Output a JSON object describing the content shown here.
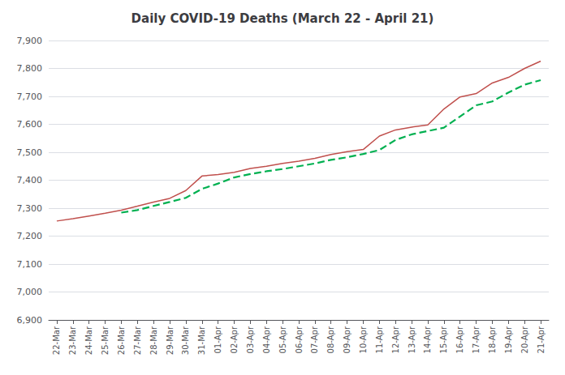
{
  "chart_data": {
    "type": "line",
    "title": "Daily COVID-19 Deaths (March 22 - April 21)",
    "categories": [
      "22-Mar",
      "23-Mar",
      "24-Mar",
      "25-Mar",
      "26-Mar",
      "27-Mar",
      "28-Mar",
      "29-Mar",
      "30-Mar",
      "31-Mar",
      "01-Apr",
      "02-Apr",
      "03-Apr",
      "04-Apr",
      "05-Apr",
      "06-Apr",
      "07-Apr",
      "08-Apr",
      "09-Apr",
      "10-Apr",
      "11-Apr",
      "12-Apr",
      "13-Apr",
      "14-Apr",
      "15-Apr",
      "16-Apr",
      "17-Apr",
      "18-Apr",
      "19-Apr",
      "20-Apr",
      "21-Apr"
    ],
    "series": [
      {
        "color": "#c0504d",
        "line_style": "solid",
        "values": [
          7254,
          7262,
          7272,
          7282,
          7293,
          7307,
          7322,
          7335,
          7363,
          7415,
          7420,
          7428,
          7442,
          7450,
          7460,
          7468,
          7478,
          7492,
          7502,
          7510,
          7558,
          7580,
          7590,
          7598,
          7655,
          7698,
          7710,
          7748,
          7768,
          7800,
          7826
        ]
      },
      {
        "color": "#00b050",
        "line_style": "dashed",
        "values": [
          null,
          null,
          null,
          null,
          7284,
          7293,
          7308,
          7322,
          7337,
          7369,
          7388,
          7410,
          7422,
          7432,
          7440,
          7450,
          7460,
          7473,
          7482,
          7494,
          7508,
          7544,
          7564,
          7576,
          7588,
          7628,
          7668,
          7682,
          7714,
          7742,
          7758
        ]
      }
    ],
    "ylim": [
      6900,
      7900
    ],
    "yticks": [
      {
        "value": 6900,
        "label": "6,900"
      },
      {
        "value": 7000,
        "label": "7,000"
      },
      {
        "value": 7100,
        "label": "7,100"
      },
      {
        "value": 7200,
        "label": "7,200"
      },
      {
        "value": 7300,
        "label": "7,300"
      },
      {
        "value": 7400,
        "label": "7,400"
      },
      {
        "value": 7500,
        "label": "7,500"
      },
      {
        "value": 7600,
        "label": "7,600"
      },
      {
        "value": 7700,
        "label": "7,700"
      },
      {
        "value": 7800,
        "label": "7,800"
      },
      {
        "value": 7900,
        "label": "7,900"
      }
    ],
    "grid": true
  }
}
